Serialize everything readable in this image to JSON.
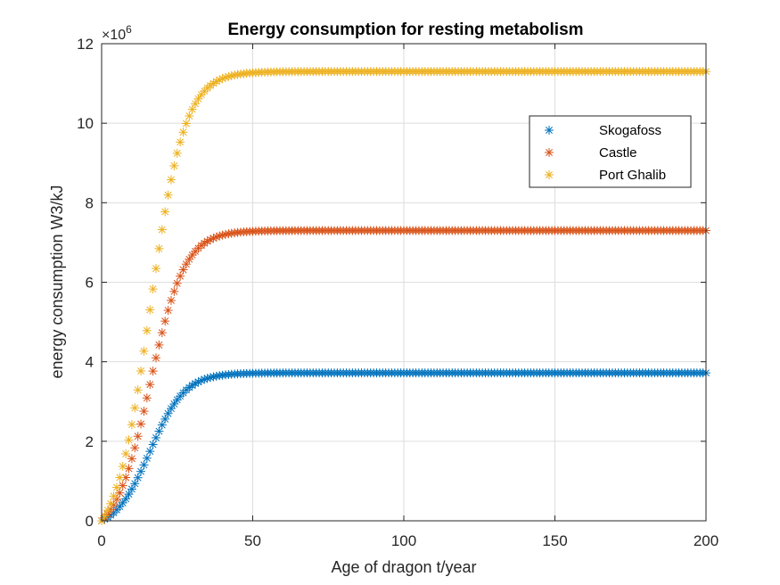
{
  "chart_data": {
    "type": "scatter",
    "title": "Energy consumption for resting metabolism",
    "xlabel": "Age of dragon  t/year",
    "ylabel": "energy consumption W3/kJ",
    "y_exponent_label": "×10",
    "y_exponent_power": "6",
    "xlim": [
      0,
      200
    ],
    "ylim": [
      0,
      12
    ],
    "x_ticks": [
      0,
      50,
      100,
      150,
      200
    ],
    "y_ticks": [
      0,
      2,
      4,
      6,
      8,
      10,
      12
    ],
    "grid": true,
    "legend_position": "top-right",
    "marker": "asterisk",
    "x": {
      "start": 0,
      "stop": 200,
      "step": 1
    },
    "series": [
      {
        "name": "Skogafoss",
        "color": "#0072BD",
        "plateau": 3.72,
        "growth_rate": 0.175,
        "midpoint_age": 16
      },
      {
        "name": "Castle",
        "color": "#D95319",
        "plateau": 7.3,
        "growth_rate": 0.175,
        "midpoint_age": 16
      },
      {
        "name": "Port Ghalib",
        "color": "#EDB120",
        "plateau": 11.3,
        "growth_rate": 0.175,
        "midpoint_age": 16
      }
    ]
  }
}
